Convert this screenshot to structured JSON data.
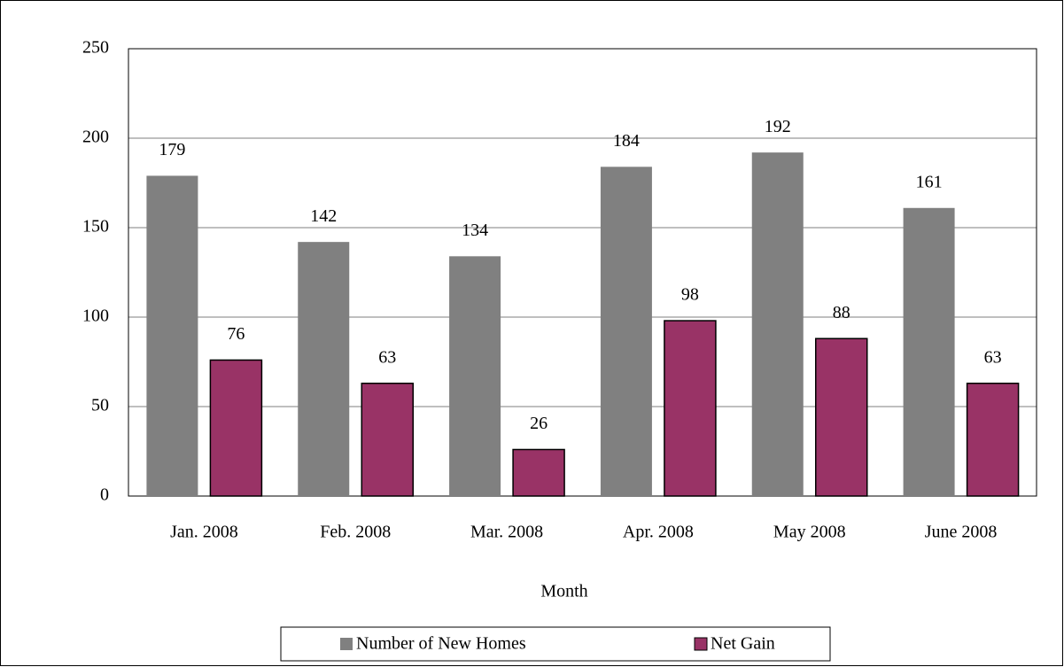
{
  "chart_data": {
    "type": "bar",
    "x_label": "Month",
    "categories": [
      "Jan. 2008",
      "Feb. 2008",
      "Mar. 2008",
      "Apr. 2008",
      "May 2008",
      "June 2008"
    ],
    "series": [
      {
        "name": "Number of New Homes",
        "color": "#808080",
        "values": [
          179,
          142,
          134,
          184,
          192,
          161
        ]
      },
      {
        "name": "Net Gain",
        "color": "#993366",
        "values": [
          76,
          63,
          26,
          98,
          88,
          63
        ]
      }
    ],
    "ylim": [
      0,
      250
    ],
    "yticks": [
      0,
      50,
      100,
      150,
      200,
      250
    ],
    "grid": true,
    "legend": "bottom"
  }
}
